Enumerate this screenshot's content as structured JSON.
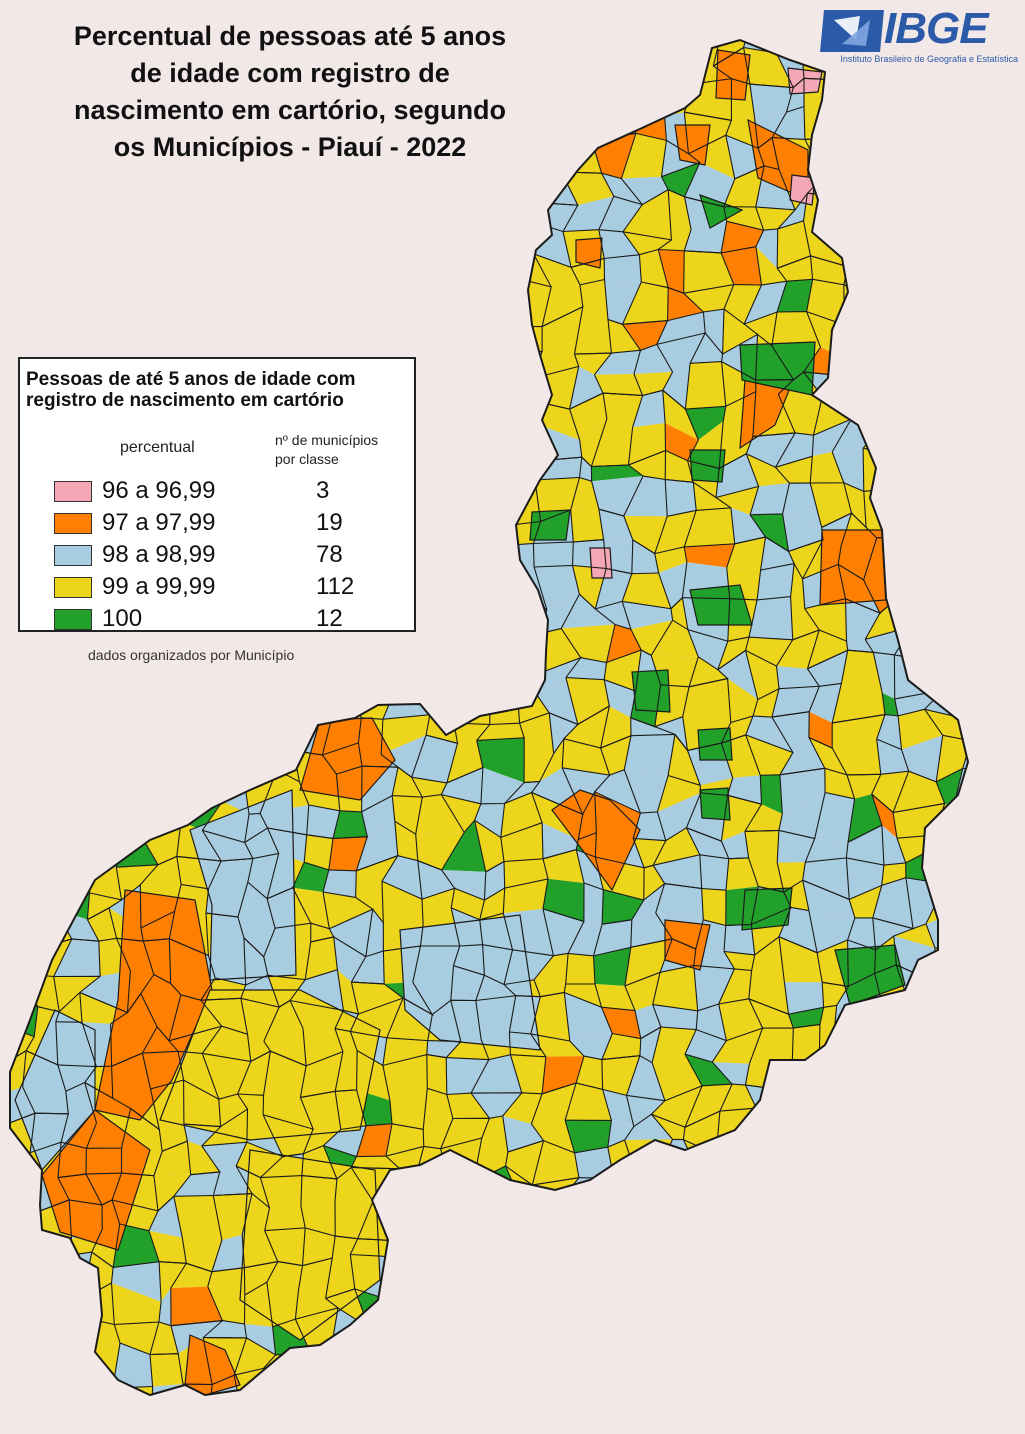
{
  "title": "Percentual de pessoas até 5 anos\nde idade com registro de\nnascimento em cartório, segundo\nos Municípios - Piauí - 2022",
  "logo": {
    "name": "IBGE",
    "subtitle": "Instituto Brasileiro de Geografia e Estatística"
  },
  "legend": {
    "title": "Pessoas de até 5 anos de idade com\nregistro de nascimento em cartório",
    "col_percent": "percentual",
    "col_count": "nº de municípios\npor classe",
    "classes": [
      {
        "range": "96 a 96,99",
        "count": "3",
        "color": "#f4a7b4"
      },
      {
        "range": "97 a 97,99",
        "count": "19",
        "color": "#ff8000"
      },
      {
        "range": "98 a 98,99",
        "count": "78",
        "color": "#a9cde0"
      },
      {
        "range": "99 a 99,99",
        "count": "112",
        "color": "#ecd51b"
      },
      {
        "range": "100",
        "count": "12",
        "color": "#22a12a"
      }
    ]
  },
  "footnote": "dados organizados por Município",
  "map": {
    "region": "Piauí",
    "outline_color": "#1b1b1b"
  }
}
